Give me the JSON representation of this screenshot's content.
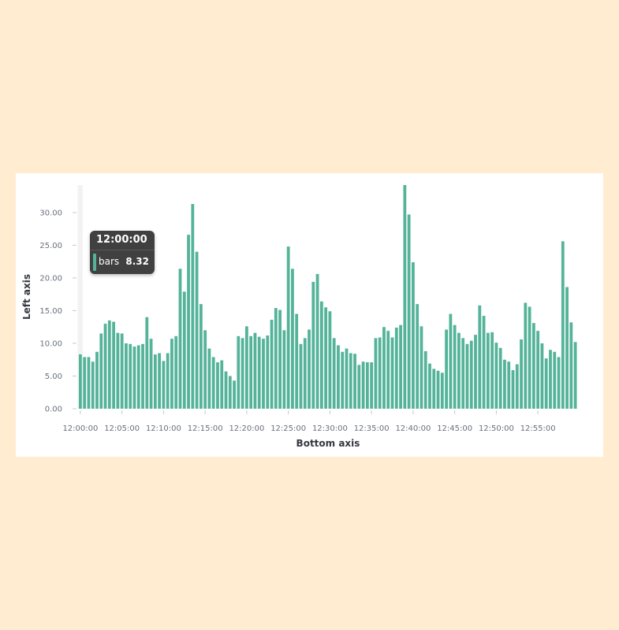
{
  "chart_data": {
    "type": "bar",
    "xlabel": "Bottom axis",
    "ylabel": "Left axis",
    "ylim": [
      0,
      34.2
    ],
    "yticks": [
      "0.00",
      "5.00",
      "10.00",
      "15.00",
      "20.00",
      "25.00",
      "30.00"
    ],
    "xticks": [
      "12:00:00",
      "12:05:00",
      "12:10:00",
      "12:15:00",
      "12:20:00",
      "12:25:00",
      "12:30:00",
      "12:35:00",
      "12:40:00",
      "12:45:00",
      "12:50:00",
      "12:55:00"
    ],
    "x_interval_minutes": 0.5,
    "grid": false,
    "series": [
      {
        "name": "bars",
        "color": "#54b399",
        "values": [
          8.32,
          7.9,
          7.9,
          7.2,
          8.7,
          11.5,
          13.0,
          13.5,
          13.3,
          11.6,
          11.5,
          10.0,
          9.9,
          9.5,
          9.7,
          9.9,
          14.0,
          10.7,
          8.3,
          8.5,
          7.3,
          8.5,
          10.7,
          11.1,
          21.4,
          17.9,
          26.6,
          31.3,
          24.0,
          16.0,
          12.0,
          9.2,
          7.9,
          7.1,
          7.4,
          5.7,
          5.0,
          4.3,
          11.1,
          10.8,
          12.6,
          11.1,
          11.6,
          11.0,
          10.7,
          11.2,
          13.6,
          15.4,
          15.1,
          12.0,
          24.8,
          21.4,
          14.5,
          9.9,
          10.8,
          12.1,
          19.4,
          20.6,
          16.4,
          15.5,
          14.9,
          10.8,
          9.7,
          8.7,
          9.2,
          8.5,
          8.4,
          6.7,
          7.2,
          7.1,
          7.1,
          10.8,
          10.9,
          12.5,
          11.9,
          10.9,
          12.4,
          12.8,
          34.2,
          29.7,
          22.4,
          16.0,
          12.6,
          8.8,
          6.9,
          6.1,
          5.8,
          5.5,
          12.1,
          14.5,
          12.8,
          11.6,
          10.8,
          9.9,
          10.4,
          11.3,
          15.8,
          14.2,
          11.6,
          11.7,
          10.1,
          9.3,
          7.5,
          7.2,
          5.9,
          6.8,
          10.6,
          16.2,
          15.6,
          13.1,
          11.9,
          10.0,
          7.7,
          9.0,
          8.7,
          7.9,
          25.6,
          18.6,
          13.2,
          10.2
        ]
      }
    ],
    "tooltip": {
      "time": "12:00:00",
      "series": "bars",
      "value": "8.32"
    }
  }
}
